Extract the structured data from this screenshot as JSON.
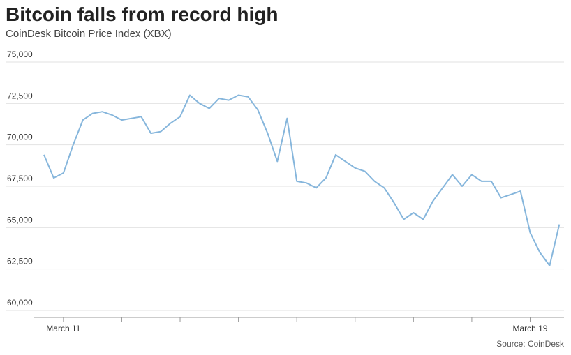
{
  "chart_data": {
    "type": "line",
    "title": "Bitcoin falls from record high",
    "subtitle": "CoinDesk Bitcoin Price Index (XBX)",
    "source": "Source: CoinDesk",
    "categories": [
      null,
      null,
      "March 11",
      null,
      null,
      null,
      null,
      null,
      null,
      null,
      null,
      null,
      null,
      null,
      null,
      null,
      null,
      null,
      null,
      null,
      null,
      null,
      null,
      null,
      null,
      null,
      null,
      null,
      null,
      null,
      null,
      null,
      null,
      null,
      null,
      null,
      null,
      null,
      null,
      null,
      null,
      null,
      null,
      null,
      null,
      null,
      null,
      null,
      null,
      null,
      "March 19",
      null,
      null,
      null
    ],
    "series": [
      {
        "name": "XBX",
        "color": "#86b6dc",
        "values": [
          69400,
          68000,
          68300,
          70000,
          71500,
          71900,
          72000,
          71800,
          71500,
          71600,
          71700,
          70700,
          70800,
          71300,
          71700,
          73000,
          72500,
          72200,
          72800,
          72700,
          73000,
          72900,
          72100,
          70700,
          69000,
          71600,
          67800,
          67700,
          67400,
          68000,
          69400,
          69000,
          68600,
          68400,
          67800,
          67400,
          66500,
          65500,
          65900,
          65500,
          66600,
          67400,
          68200,
          67500,
          68200,
          67800,
          67800,
          66800,
          67000,
          67200,
          64700,
          63500,
          62700,
          65200
        ]
      }
    ],
    "ylim": [
      60000,
      75000
    ],
    "yticks": [
      {
        "value": 60000,
        "label": "60,000"
      },
      {
        "value": 62500,
        "label": "62,500"
      },
      {
        "value": 65000,
        "label": "65,000"
      },
      {
        "value": 67500,
        "label": "67,500"
      },
      {
        "value": 70000,
        "label": "70,000"
      },
      {
        "value": 72500,
        "label": "72,500"
      },
      {
        "value": 75000,
        "label": "75,000"
      }
    ],
    "grid": true
  }
}
